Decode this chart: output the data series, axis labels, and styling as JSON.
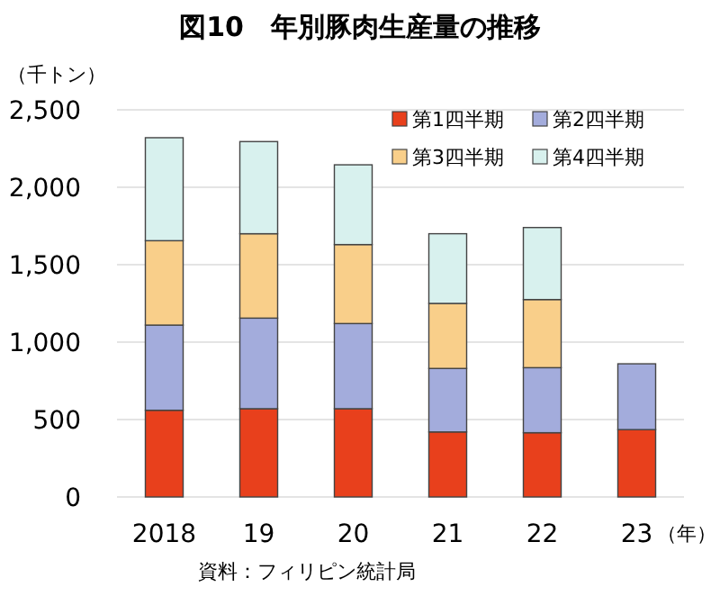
{
  "chart_data": {
    "type": "bar",
    "title": "図10　年別豚肉生産量の推移",
    "ylabel": "（千トン）",
    "xlabel": "（年）",
    "annotations": [
      "資料：フィリピン統計局"
    ],
    "categories": [
      "2018",
      "19",
      "20",
      "21",
      "22",
      "23"
    ],
    "stacked": true,
    "ylim": [
      0,
      2500
    ],
    "yticks": [
      0,
      {
        "value": 500,
        "label": "500"
      },
      {
        "value": 1000,
        "label": "1,000"
      },
      {
        "value": 1500,
        "label": "1,500"
      },
      {
        "value": 2000,
        "label": "2,000"
      },
      {
        "value": 2500,
        "label": "2,500"
      }
    ],
    "grid": "y",
    "legend": "top right",
    "series": [
      {
        "name": "第1四半期",
        "color": "#e8401c",
        "values": [
          560,
          570,
          570,
          420,
          415,
          435
        ]
      },
      {
        "name": "第2四半期",
        "color": "#a3acdc",
        "values": [
          550,
          585,
          550,
          410,
          420,
          425
        ]
      },
      {
        "name": "第3四半期",
        "color": "#f9cf8a",
        "values": [
          545,
          545,
          510,
          420,
          440,
          null
        ]
      },
      {
        "name": "第4四半期",
        "color": "#d8f1ee",
        "values": [
          665,
          595,
          515,
          450,
          465,
          null
        ]
      }
    ]
  }
}
